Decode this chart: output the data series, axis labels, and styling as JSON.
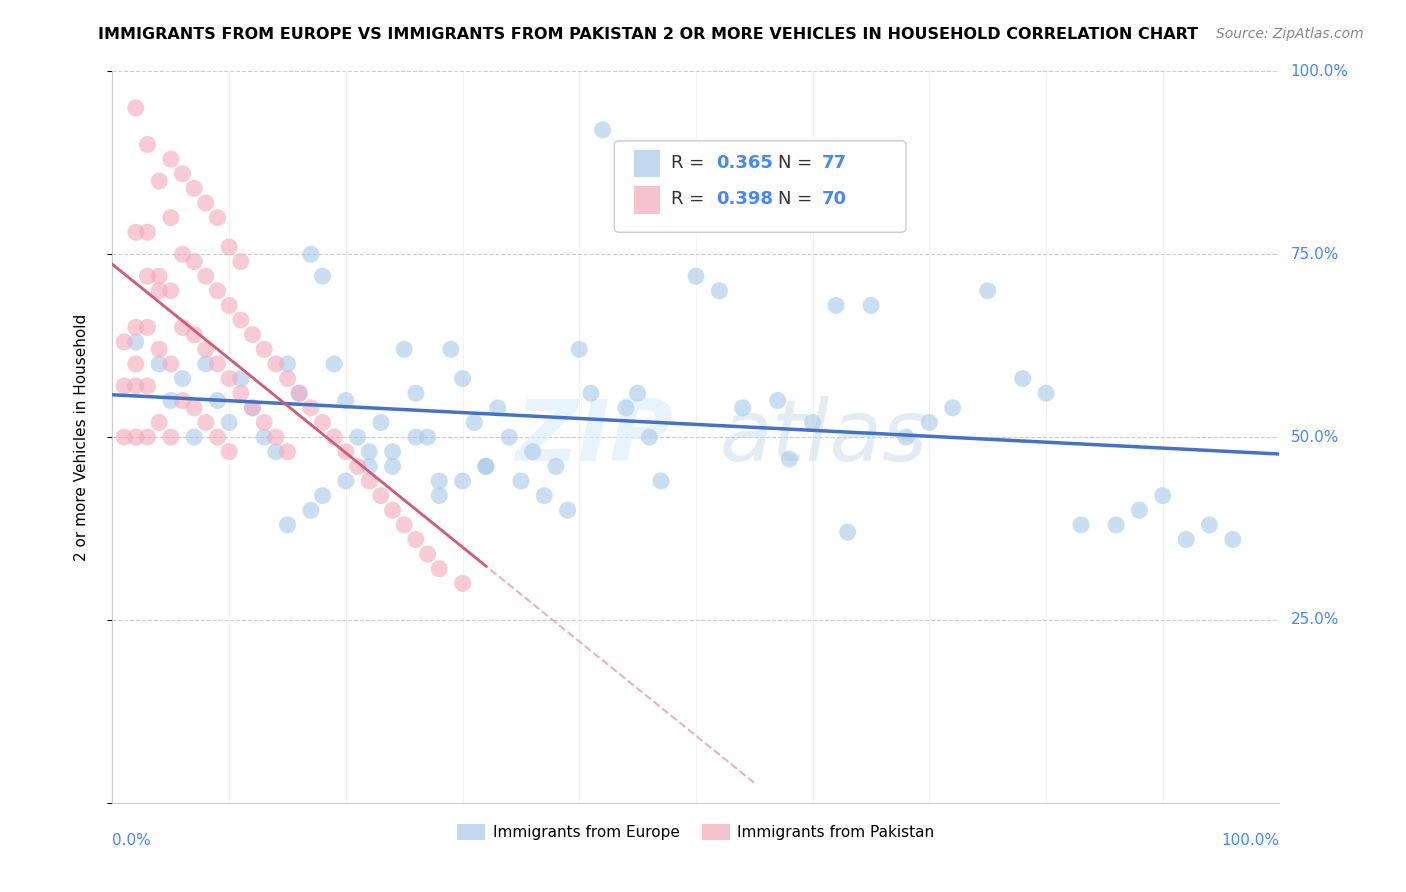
{
  "title": "IMMIGRANTS FROM EUROPE VS IMMIGRANTS FROM PAKISTAN 2 OR MORE VEHICLES IN HOUSEHOLD CORRELATION CHART",
  "source": "Source: ZipAtlas.com",
  "ylabel": "2 or more Vehicles in Household",
  "xlim": [
    0,
    1
  ],
  "ylim": [
    0,
    1
  ],
  "yticks": [
    0.0,
    0.25,
    0.5,
    0.75,
    1.0
  ],
  "ytick_labels": [
    "",
    "25.0%",
    "50.0%",
    "75.0%",
    "100.0%"
  ],
  "europe_color": "#a8c8e8",
  "pakistan_color": "#f4a8bc",
  "europe_R": 0.365,
  "europe_N": 77,
  "pakistan_R": 0.398,
  "pakistan_N": 70,
  "europe_line_color": "#4472c4",
  "pakistan_line_color": "#d45a78",
  "pakistan_line_dashed_color": "#e8b0c0",
  "watermark_zip": "ZIP",
  "watermark_atlas": "atlas",
  "legend_europe": "Immigrants from Europe",
  "legend_pakistan": "Immigrants from Pakistan",
  "europe_x": [
    0.02,
    0.04,
    0.05,
    0.06,
    0.07,
    0.08,
    0.09,
    0.1,
    0.11,
    0.12,
    0.13,
    0.14,
    0.15,
    0.16,
    0.17,
    0.18,
    0.19,
    0.2,
    0.21,
    0.22,
    0.23,
    0.24,
    0.25,
    0.26,
    0.27,
    0.28,
    0.29,
    0.3,
    0.31,
    0.32,
    0.33,
    0.34,
    0.35,
    0.36,
    0.37,
    0.38,
    0.39,
    0.4,
    0.41,
    0.42,
    0.44,
    0.45,
    0.46,
    0.47,
    0.48,
    0.5,
    0.52,
    0.54,
    0.57,
    0.6,
    0.62,
    0.65,
    0.68,
    0.7,
    0.72,
    0.75,
    0.78,
    0.8,
    0.83,
    0.86,
    0.88,
    0.9,
    0.92,
    0.94,
    0.96,
    0.28,
    0.3,
    0.32,
    0.18,
    0.2,
    0.22,
    0.24,
    0.26,
    0.15,
    0.17,
    0.58,
    0.63
  ],
  "europe_y": [
    0.63,
    0.6,
    0.55,
    0.58,
    0.5,
    0.6,
    0.55,
    0.52,
    0.58,
    0.54,
    0.5,
    0.48,
    0.6,
    0.56,
    0.75,
    0.72,
    0.6,
    0.55,
    0.5,
    0.48,
    0.52,
    0.46,
    0.62,
    0.56,
    0.5,
    0.44,
    0.62,
    0.58,
    0.52,
    0.46,
    0.54,
    0.5,
    0.44,
    0.48,
    0.42,
    0.46,
    0.4,
    0.62,
    0.56,
    0.92,
    0.54,
    0.56,
    0.5,
    0.44,
    0.8,
    0.72,
    0.7,
    0.54,
    0.55,
    0.52,
    0.68,
    0.68,
    0.5,
    0.52,
    0.54,
    0.7,
    0.58,
    0.56,
    0.38,
    0.38,
    0.4,
    0.42,
    0.36,
    0.38,
    0.36,
    0.42,
    0.44,
    0.46,
    0.42,
    0.44,
    0.46,
    0.48,
    0.5,
    0.38,
    0.4,
    0.47,
    0.37
  ],
  "pakistan_x": [
    0.01,
    0.01,
    0.01,
    0.02,
    0.02,
    0.02,
    0.02,
    0.02,
    0.03,
    0.03,
    0.03,
    0.03,
    0.03,
    0.04,
    0.04,
    0.04,
    0.04,
    0.05,
    0.05,
    0.05,
    0.05,
    0.06,
    0.06,
    0.06,
    0.07,
    0.07,
    0.07,
    0.08,
    0.08,
    0.08,
    0.09,
    0.09,
    0.09,
    0.1,
    0.1,
    0.1,
    0.11,
    0.11,
    0.12,
    0.12,
    0.13,
    0.13,
    0.14,
    0.14,
    0.15,
    0.15,
    0.16,
    0.17,
    0.18,
    0.19,
    0.2,
    0.21,
    0.22,
    0.23,
    0.24,
    0.25,
    0.26,
    0.27,
    0.28,
    0.3,
    0.05,
    0.06,
    0.07,
    0.08,
    0.09,
    0.1,
    0.11,
    0.03,
    0.04,
    0.02
  ],
  "pakistan_y": [
    0.63,
    0.57,
    0.5,
    0.95,
    0.78,
    0.65,
    0.57,
    0.5,
    0.9,
    0.78,
    0.65,
    0.57,
    0.5,
    0.85,
    0.72,
    0.62,
    0.52,
    0.8,
    0.7,
    0.6,
    0.5,
    0.75,
    0.65,
    0.55,
    0.74,
    0.64,
    0.54,
    0.72,
    0.62,
    0.52,
    0.7,
    0.6,
    0.5,
    0.68,
    0.58,
    0.48,
    0.66,
    0.56,
    0.64,
    0.54,
    0.62,
    0.52,
    0.6,
    0.5,
    0.58,
    0.48,
    0.56,
    0.54,
    0.52,
    0.5,
    0.48,
    0.46,
    0.44,
    0.42,
    0.4,
    0.38,
    0.36,
    0.34,
    0.32,
    0.3,
    0.88,
    0.86,
    0.84,
    0.82,
    0.8,
    0.76,
    0.74,
    0.72,
    0.7,
    0.6
  ]
}
